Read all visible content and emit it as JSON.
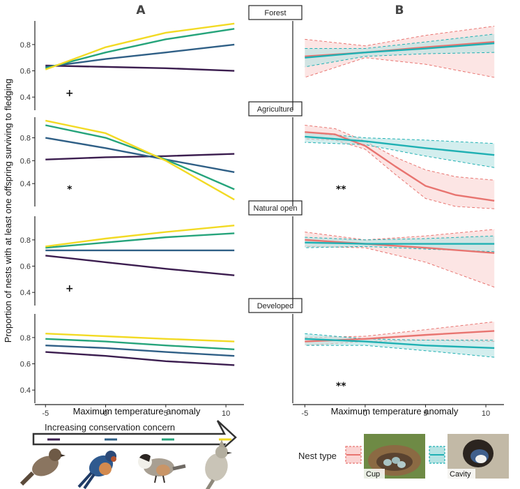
{
  "panel_labels": {
    "left": "A",
    "right": "B"
  },
  "ylabel": "Proportion of nests with at least one offspring surviving to fledging",
  "xlabel": "Maximum temperature anomaly",
  "strips": [
    "Forest",
    "Agriculture",
    "Natural open",
    "Developed"
  ],
  "conservation": {
    "label": "Increasing conservation concern",
    "colors": [
      "#3b1d4f",
      "#2f5f86",
      "#26a47b",
      "#f2da24"
    ]
  },
  "legend": {
    "title": "Nest type",
    "items": [
      {
        "name": "Cup",
        "color": "#e87470",
        "fill": "#fad3d2"
      },
      {
        "name": "Cavity",
        "color": "#1fb0b3",
        "fill": "#b5e3e3"
      }
    ]
  },
  "icons": [
    "house-sparrow-photo",
    "barn-swallow-photo",
    "chickadee-photo",
    "titmouse-photo",
    "cup-nest-photo",
    "cavity-nest-photo"
  ],
  "chart_data": [
    {
      "type": "line",
      "panel": "A",
      "facet": "Forest",
      "significance": "+",
      "x": [
        -5,
        11
      ],
      "xlim": [
        -6,
        11.5
      ],
      "ylim": [
        0.3,
        0.98
      ],
      "yticks": [
        0.4,
        0.6,
        0.8
      ],
      "xticks": [
        -5,
        0,
        5,
        10
      ],
      "series": [
        {
          "color": "#3b1d4f",
          "x": [
            -5,
            0,
            5,
            10.7
          ],
          "y": [
            0.64,
            0.63,
            0.62,
            0.6
          ]
        },
        {
          "color": "#2f5f86",
          "x": [
            -5,
            0,
            5,
            10.7
          ],
          "y": [
            0.63,
            0.69,
            0.74,
            0.8
          ]
        },
        {
          "color": "#26a47b",
          "x": [
            -5,
            0,
            5,
            10.7
          ],
          "y": [
            0.62,
            0.74,
            0.84,
            0.92
          ]
        },
        {
          "color": "#f2da24",
          "x": [
            -5,
            0,
            5,
            10.7
          ],
          "y": [
            0.61,
            0.78,
            0.89,
            0.96
          ]
        }
      ]
    },
    {
      "type": "line",
      "panel": "A",
      "facet": "Agriculture",
      "significance": "*",
      "xlim": [
        -6,
        11.5
      ],
      "ylim": [
        0.2,
        0.98
      ],
      "yticks": [
        0.4,
        0.6,
        0.8
      ],
      "xticks": [
        -5,
        0,
        5,
        10
      ],
      "series": [
        {
          "color": "#3b1d4f",
          "x": [
            -5,
            0,
            5,
            10.7
          ],
          "y": [
            0.61,
            0.63,
            0.64,
            0.66
          ]
        },
        {
          "color": "#2f5f86",
          "x": [
            -5,
            0,
            5,
            10.7
          ],
          "y": [
            0.8,
            0.71,
            0.61,
            0.5
          ]
        },
        {
          "color": "#26a47b",
          "x": [
            -5,
            0,
            5,
            10.7
          ],
          "y": [
            0.91,
            0.8,
            0.61,
            0.35
          ]
        },
        {
          "color": "#f2da24",
          "x": [
            -5,
            0,
            5,
            10.7
          ],
          "y": [
            0.95,
            0.84,
            0.6,
            0.26
          ]
        }
      ]
    },
    {
      "type": "line",
      "panel": "A",
      "facet": "Natural open",
      "significance": "+",
      "xlim": [
        -6,
        11.5
      ],
      "ylim": [
        0.3,
        0.98
      ],
      "yticks": [
        0.4,
        0.6,
        0.8
      ],
      "xticks": [
        -5,
        0,
        5,
        10
      ],
      "series": [
        {
          "color": "#3b1d4f",
          "x": [
            -5,
            0,
            5,
            10.7
          ],
          "y": [
            0.68,
            0.63,
            0.58,
            0.53
          ]
        },
        {
          "color": "#2f5f86",
          "x": [
            -5,
            0,
            5,
            10.7
          ],
          "y": [
            0.72,
            0.72,
            0.72,
            0.72
          ]
        },
        {
          "color": "#26a47b",
          "x": [
            -5,
            0,
            5,
            10.7
          ],
          "y": [
            0.74,
            0.78,
            0.82,
            0.85
          ]
        },
        {
          "color": "#f2da24",
          "x": [
            -5,
            0,
            5,
            10.7
          ],
          "y": [
            0.75,
            0.81,
            0.86,
            0.91
          ]
        }
      ]
    },
    {
      "type": "line",
      "panel": "A",
      "facet": "Developed",
      "significance": "",
      "xlim": [
        -6,
        11.5
      ],
      "ylim": [
        0.3,
        0.98
      ],
      "yticks": [
        0.4,
        0.6,
        0.8
      ],
      "xticks": [
        -5,
        0,
        5,
        10
      ],
      "series": [
        {
          "color": "#3b1d4f",
          "x": [
            -5,
            0,
            5,
            10.7
          ],
          "y": [
            0.69,
            0.66,
            0.62,
            0.59
          ]
        },
        {
          "color": "#2f5f86",
          "x": [
            -5,
            0,
            5,
            10.7
          ],
          "y": [
            0.74,
            0.72,
            0.69,
            0.66
          ]
        },
        {
          "color": "#26a47b",
          "x": [
            -5,
            0,
            5,
            10.7
          ],
          "y": [
            0.79,
            0.77,
            0.74,
            0.71
          ]
        },
        {
          "color": "#f2da24",
          "x": [
            -5,
            0,
            5,
            10.7
          ],
          "y": [
            0.83,
            0.81,
            0.79,
            0.77
          ]
        }
      ]
    },
    {
      "type": "area",
      "panel": "B",
      "facet": "Forest",
      "significance": "",
      "xlim": [
        -6,
        11.5
      ],
      "ylim": [
        0.3,
        0.98
      ],
      "xticks": [
        -5,
        0,
        5,
        10
      ],
      "series": [
        {
          "name": "Cup",
          "color": "#e87470",
          "fill": "#fad3d2",
          "x": [
            -5,
            0,
            5,
            10.7
          ],
          "y": [
            0.71,
            0.74,
            0.78,
            0.82
          ],
          "lower": [
            0.55,
            0.7,
            0.65,
            0.55
          ],
          "upper": [
            0.84,
            0.79,
            0.87,
            0.94
          ]
        },
        {
          "name": "Cavity",
          "color": "#1fb0b3",
          "fill": "#b5e3e3",
          "x": [
            -5,
            0,
            5,
            10.7
          ],
          "y": [
            0.7,
            0.74,
            0.77,
            0.81
          ],
          "lower": [
            0.63,
            0.71,
            0.73,
            0.74
          ],
          "upper": [
            0.77,
            0.77,
            0.82,
            0.88
          ]
        }
      ]
    },
    {
      "type": "area",
      "panel": "B",
      "facet": "Agriculture",
      "significance": "**",
      "xlim": [
        -6,
        11.5
      ],
      "ylim": [
        0.2,
        0.98
      ],
      "xticks": [
        -5,
        0,
        5,
        10
      ],
      "series": [
        {
          "name": "Cup",
          "color": "#e87470",
          "fill": "#fad3d2",
          "x": [
            -5,
            -2.5,
            0,
            2.5,
            5,
            7.5,
            10.7
          ],
          "y": [
            0.85,
            0.83,
            0.73,
            0.55,
            0.38,
            0.3,
            0.25
          ],
          "lower": [
            0.79,
            0.78,
            0.7,
            0.48,
            0.27,
            0.2,
            0.18
          ],
          "upper": [
            0.91,
            0.88,
            0.77,
            0.63,
            0.52,
            0.46,
            0.43
          ]
        },
        {
          "name": "Cavity",
          "color": "#1fb0b3",
          "fill": "#b5e3e3",
          "x": [
            -5,
            0,
            5,
            10.7
          ],
          "y": [
            0.81,
            0.77,
            0.71,
            0.65
          ],
          "lower": [
            0.76,
            0.74,
            0.64,
            0.54
          ],
          "upper": [
            0.85,
            0.8,
            0.78,
            0.75
          ]
        }
      ]
    },
    {
      "type": "area",
      "panel": "B",
      "facet": "Natural open",
      "significance": "",
      "xlim": [
        -6,
        11.5
      ],
      "ylim": [
        0.3,
        0.98
      ],
      "xticks": [
        -5,
        0,
        5,
        10
      ],
      "series": [
        {
          "name": "Cup",
          "color": "#e87470",
          "fill": "#fad3d2",
          "x": [
            -5,
            0,
            5,
            10.7
          ],
          "y": [
            0.8,
            0.77,
            0.74,
            0.7
          ],
          "lower": [
            0.75,
            0.74,
            0.63,
            0.44
          ],
          "upper": [
            0.86,
            0.8,
            0.83,
            0.88
          ]
        },
        {
          "name": "Cavity",
          "color": "#1fb0b3",
          "fill": "#b5e3e3",
          "x": [
            -5,
            0,
            5,
            10.7
          ],
          "y": [
            0.78,
            0.77,
            0.77,
            0.77
          ],
          "lower": [
            0.74,
            0.75,
            0.73,
            0.71
          ],
          "upper": [
            0.82,
            0.8,
            0.81,
            0.83
          ]
        }
      ]
    },
    {
      "type": "area",
      "panel": "B",
      "facet": "Developed",
      "significance": "**",
      "xlim": [
        -6,
        11.5
      ],
      "ylim": [
        0.3,
        0.98
      ],
      "xticks": [
        -5,
        0,
        5,
        10
      ],
      "series": [
        {
          "name": "Cup",
          "color": "#e87470",
          "fill": "#fad3d2",
          "x": [
            -5,
            0,
            5,
            10.7
          ],
          "y": [
            0.77,
            0.79,
            0.82,
            0.85
          ],
          "lower": [
            0.74,
            0.77,
            0.78,
            0.77
          ],
          "upper": [
            0.8,
            0.81,
            0.86,
            0.92
          ]
        },
        {
          "name": "Cavity",
          "color": "#1fb0b3",
          "fill": "#b5e3e3",
          "x": [
            -5,
            0,
            5,
            10.7
          ],
          "y": [
            0.79,
            0.77,
            0.74,
            0.72
          ],
          "lower": [
            0.74,
            0.74,
            0.7,
            0.65
          ],
          "upper": [
            0.83,
            0.79,
            0.78,
            0.78
          ]
        }
      ]
    }
  ]
}
